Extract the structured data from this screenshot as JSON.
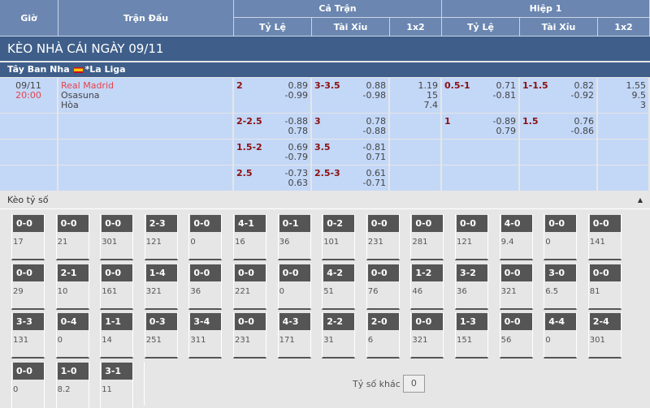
{
  "header": {
    "time": "Giờ",
    "match": "Trận Đấu",
    "full": "Cả Trận",
    "half": "Hiệp 1",
    "handicap": "Tỷ Lệ",
    "ou": "Tài Xỉu",
    "x12": "1x2"
  },
  "title": "KÈO NHÀ CÁI NGÀY 09/11",
  "league": {
    "country": "Tây Ban Nha",
    "name": "*La Liga"
  },
  "match": {
    "date": "09/11",
    "time": "20:00",
    "home": "Real Madrid",
    "away": "Osasuna",
    "draw": "Hòa"
  },
  "rows": [
    {
      "ft_hc": "2",
      "ft_hc_odds": "0.89\n-0.99",
      "ft_ou": "3-3.5",
      "ft_ou_odds": "0.88\n-0.98",
      "ft_1x2": "1.19\n15\n7.4",
      "h1_hc": "0.5-1",
      "h1_hc_odds": "0.71\n-0.81",
      "h1_ou": "1-1.5",
      "h1_ou_odds": "0.82\n-0.92",
      "h1_1x2": "1.55\n9.5\n3"
    },
    {
      "ft_hc": "2-2.5",
      "ft_hc_odds": "-0.88\n0.78",
      "ft_ou": "3",
      "ft_ou_odds": "0.78\n-0.88",
      "ft_1x2": "",
      "h1_hc": "1",
      "h1_hc_odds": "-0.89\n0.79",
      "h1_ou": "1.5",
      "h1_ou_odds": "0.76\n-0.86",
      "h1_1x2": ""
    },
    {
      "ft_hc": "1.5-2",
      "ft_hc_odds": "0.69\n-0.79",
      "ft_ou": "3.5",
      "ft_ou_odds": "-0.81\n0.71",
      "ft_1x2": "",
      "h1_hc": "",
      "h1_hc_odds": "",
      "h1_ou": "",
      "h1_ou_odds": "",
      "h1_1x2": ""
    },
    {
      "ft_hc": "2.5",
      "ft_hc_odds": "-0.73\n0.63",
      "ft_ou": "2.5-3",
      "ft_ou_odds": "0.61\n-0.71",
      "ft_1x2": "",
      "h1_hc": "",
      "h1_hc_odds": "",
      "h1_ou": "",
      "h1_ou_odds": "",
      "h1_1x2": ""
    }
  ],
  "correct_score": {
    "label": "Kèo tỷ số",
    "collapse_icon": "caret-up-icon",
    "cards": [
      [
        "0-0",
        "17"
      ],
      [
        "0-0",
        "21"
      ],
      [
        "0-0",
        "301"
      ],
      [
        "2-3",
        "121"
      ],
      [
        "0-0",
        "0"
      ],
      [
        "4-1",
        "16"
      ],
      [
        "0-1",
        "36"
      ],
      [
        "0-2",
        "101"
      ],
      [
        "0-0",
        "231"
      ],
      [
        "0-0",
        "281"
      ],
      [
        "0-0",
        "121"
      ],
      [
        "4-0",
        "9.4"
      ],
      [
        "0-0",
        "0"
      ],
      [
        "0-0",
        "141"
      ],
      [
        "0-0",
        "29"
      ],
      [
        "2-1",
        "10"
      ],
      [
        "0-0",
        "161"
      ],
      [
        "1-4",
        "321"
      ],
      [
        "0-0",
        "36"
      ],
      [
        "0-0",
        "221"
      ],
      [
        "0-0",
        "0"
      ],
      [
        "4-2",
        "51"
      ],
      [
        "0-0",
        "76"
      ],
      [
        "1-2",
        "46"
      ],
      [
        "3-2",
        "36"
      ],
      [
        "0-0",
        "321"
      ],
      [
        "3-0",
        "6.5"
      ],
      [
        "0-0",
        "81"
      ],
      [
        "3-3",
        "131"
      ],
      [
        "0-4",
        "0"
      ],
      [
        "1-1",
        "14"
      ],
      [
        "0-3",
        "251"
      ],
      [
        "3-4",
        "311"
      ],
      [
        "0-0",
        "231"
      ],
      [
        "4-3",
        "171"
      ],
      [
        "2-2",
        "31"
      ],
      [
        "2-0",
        "6"
      ],
      [
        "0-0",
        "321"
      ],
      [
        "1-3",
        "151"
      ],
      [
        "0-0",
        "56"
      ],
      [
        "4-4",
        "0"
      ],
      [
        "2-4",
        "301"
      ],
      [
        "0-0",
        "0"
      ],
      [
        "1-0",
        "8.2"
      ],
      [
        "3-1",
        "11"
      ]
    ],
    "other_label": "Tỷ số khác",
    "other_value": "0"
  }
}
